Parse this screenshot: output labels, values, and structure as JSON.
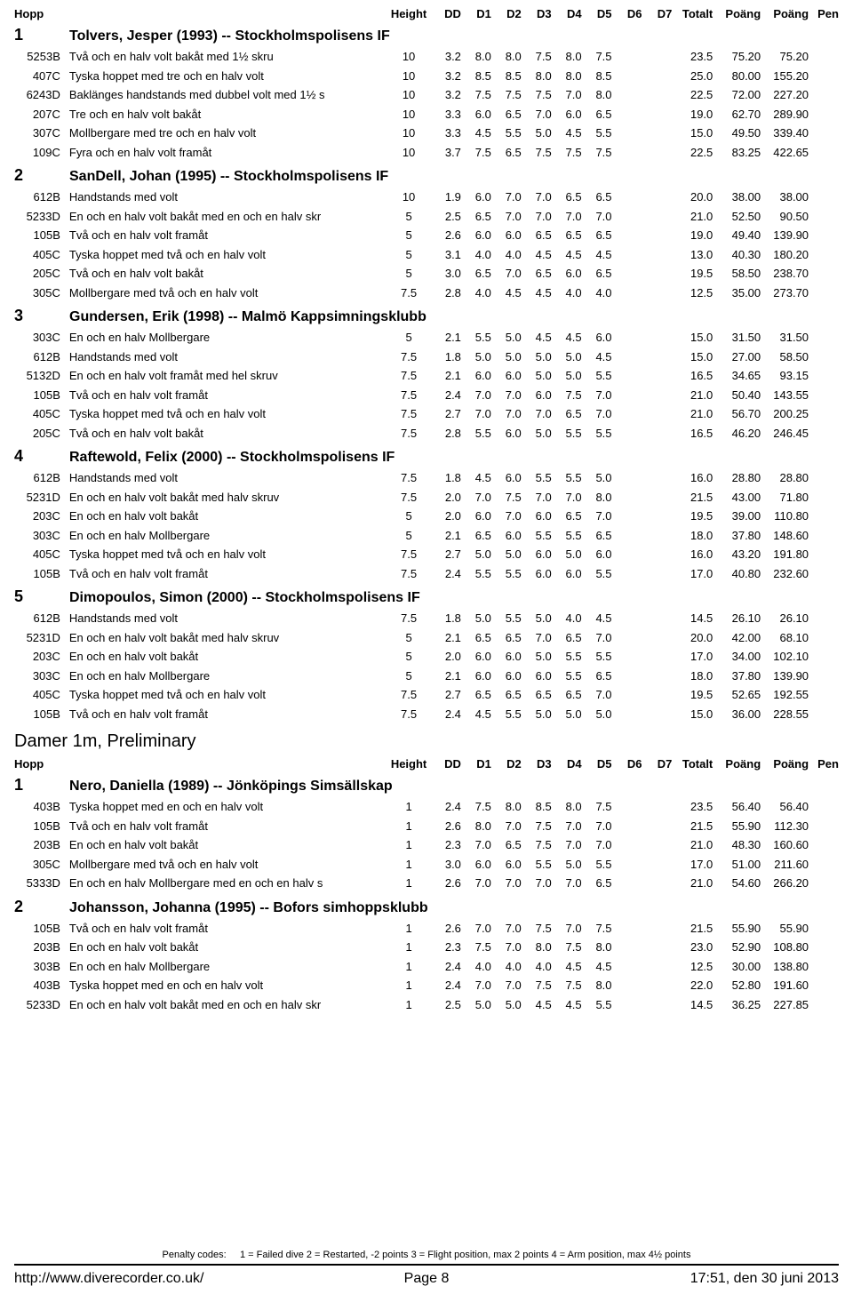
{
  "headers": {
    "hopp": "Hopp",
    "height": "Height",
    "dd": "DD",
    "d1": "D1",
    "d2": "D2",
    "d3": "D3",
    "d4": "D4",
    "d5": "D5",
    "d6": "D6",
    "d7": "D7",
    "totalt": "Totalt",
    "poang1": "Poäng",
    "poang2": "Poäng",
    "pen": "Pen"
  },
  "sections": [
    {
      "title": null,
      "divers": [
        {
          "num": "1",
          "name": "Tolvers, Jesper (1993) -- Stockholmspolisens IF",
          "dives": [
            {
              "code": "5253B",
              "desc": "Två och en halv volt bakåt med 1½ skru",
              "h": "10",
              "dd": "3.2",
              "d": [
                "8.0",
                "8.0",
                "7.5",
                "8.0",
                "7.5"
              ],
              "tot": "23.5",
              "p1": "75.20",
              "p2": "75.20"
            },
            {
              "code": "407C",
              "desc": "Tyska hoppet med tre och en halv volt",
              "h": "10",
              "dd": "3.2",
              "d": [
                "8.5",
                "8.5",
                "8.0",
                "8.0",
                "8.5"
              ],
              "tot": "25.0",
              "p1": "80.00",
              "p2": "155.20"
            },
            {
              "code": "6243D",
              "desc": "Baklänges handstands med dubbel volt med 1½ s",
              "h": "10",
              "dd": "3.2",
              "d": [
                "7.5",
                "7.5",
                "7.5",
                "7.0",
                "8.0"
              ],
              "tot": "22.5",
              "p1": "72.00",
              "p2": "227.20"
            },
            {
              "code": "207C",
              "desc": "Tre och en halv volt bakåt",
              "h": "10",
              "dd": "3.3",
              "d": [
                "6.0",
                "6.5",
                "7.0",
                "6.0",
                "6.5"
              ],
              "tot": "19.0",
              "p1": "62.70",
              "p2": "289.90"
            },
            {
              "code": "307C",
              "desc": "Mollbergare med tre och en halv volt",
              "h": "10",
              "dd": "3.3",
              "d": [
                "4.5",
                "5.5",
                "5.0",
                "4.5",
                "5.5"
              ],
              "tot": "15.0",
              "p1": "49.50",
              "p2": "339.40"
            },
            {
              "code": "109C",
              "desc": "Fyra och en halv volt framåt",
              "h": "10",
              "dd": "3.7",
              "d": [
                "7.5",
                "6.5",
                "7.5",
                "7.5",
                "7.5"
              ],
              "tot": "22.5",
              "p1": "83.25",
              "p2": "422.65"
            }
          ]
        },
        {
          "num": "2",
          "name": "SanDell, Johan (1995) -- Stockholmspolisens IF",
          "dives": [
            {
              "code": "612B",
              "desc": "Handstands med volt",
              "h": "10",
              "dd": "1.9",
              "d": [
                "6.0",
                "7.0",
                "7.0",
                "6.5",
                "6.5"
              ],
              "tot": "20.0",
              "p1": "38.00",
              "p2": "38.00"
            },
            {
              "code": "5233D",
              "desc": "En och en halv volt bakåt med en och en halv skr",
              "h": "5",
              "dd": "2.5",
              "d": [
                "6.5",
                "7.0",
                "7.0",
                "7.0",
                "7.0"
              ],
              "tot": "21.0",
              "p1": "52.50",
              "p2": "90.50"
            },
            {
              "code": "105B",
              "desc": "Två och en halv volt framåt",
              "h": "5",
              "dd": "2.6",
              "d": [
                "6.0",
                "6.0",
                "6.5",
                "6.5",
                "6.5"
              ],
              "tot": "19.0",
              "p1": "49.40",
              "p2": "139.90"
            },
            {
              "code": "405C",
              "desc": "Tyska hoppet med två och en halv volt",
              "h": "5",
              "dd": "3.1",
              "d": [
                "4.0",
                "4.0",
                "4.5",
                "4.5",
                "4.5"
              ],
              "tot": "13.0",
              "p1": "40.30",
              "p2": "180.20"
            },
            {
              "code": "205C",
              "desc": "Två och en halv volt bakåt",
              "h": "5",
              "dd": "3.0",
              "d": [
                "6.5",
                "7.0",
                "6.5",
                "6.0",
                "6.5"
              ],
              "tot": "19.5",
              "p1": "58.50",
              "p2": "238.70"
            },
            {
              "code": "305C",
              "desc": "Mollbergare med två och en halv volt",
              "h": "7.5",
              "dd": "2.8",
              "d": [
                "4.0",
                "4.5",
                "4.5",
                "4.0",
                "4.0"
              ],
              "tot": "12.5",
              "p1": "35.00",
              "p2": "273.70"
            }
          ]
        },
        {
          "num": "3",
          "name": "Gundersen, Erik (1998) -- Malmö Kappsimningsklubb",
          "dives": [
            {
              "code": "303C",
              "desc": "En och en halv Mollbergare",
              "h": "5",
              "dd": "2.1",
              "d": [
                "5.5",
                "5.0",
                "4.5",
                "4.5",
                "6.0"
              ],
              "tot": "15.0",
              "p1": "31.50",
              "p2": "31.50"
            },
            {
              "code": "612B",
              "desc": "Handstands med volt",
              "h": "7.5",
              "dd": "1.8",
              "d": [
                "5.0",
                "5.0",
                "5.0",
                "5.0",
                "4.5"
              ],
              "tot": "15.0",
              "p1": "27.00",
              "p2": "58.50"
            },
            {
              "code": "5132D",
              "desc": "En och en halv volt framåt med hel skruv",
              "h": "7.5",
              "dd": "2.1",
              "d": [
                "6.0",
                "6.0",
                "5.0",
                "5.0",
                "5.5"
              ],
              "tot": "16.5",
              "p1": "34.65",
              "p2": "93.15"
            },
            {
              "code": "105B",
              "desc": "Två och en halv volt framåt",
              "h": "7.5",
              "dd": "2.4",
              "d": [
                "7.0",
                "7.0",
                "6.0",
                "7.5",
                "7.0"
              ],
              "tot": "21.0",
              "p1": "50.40",
              "p2": "143.55"
            },
            {
              "code": "405C",
              "desc": "Tyska hoppet med två och en halv volt",
              "h": "7.5",
              "dd": "2.7",
              "d": [
                "7.0",
                "7.0",
                "7.0",
                "6.5",
                "7.0"
              ],
              "tot": "21.0",
              "p1": "56.70",
              "p2": "200.25"
            },
            {
              "code": "205C",
              "desc": "Två och en halv volt bakåt",
              "h": "7.5",
              "dd": "2.8",
              "d": [
                "5.5",
                "6.0",
                "5.0",
                "5.5",
                "5.5"
              ],
              "tot": "16.5",
              "p1": "46.20",
              "p2": "246.45"
            }
          ]
        },
        {
          "num": "4",
          "name": "Raftewold, Felix (2000) -- Stockholmspolisens IF",
          "dives": [
            {
              "code": "612B",
              "desc": "Handstands med volt",
              "h": "7.5",
              "dd": "1.8",
              "d": [
                "4.5",
                "6.0",
                "5.5",
                "5.5",
                "5.0"
              ],
              "tot": "16.0",
              "p1": "28.80",
              "p2": "28.80"
            },
            {
              "code": "5231D",
              "desc": "En och en halv volt bakåt med halv skruv",
              "h": "7.5",
              "dd": "2.0",
              "d": [
                "7.0",
                "7.5",
                "7.0",
                "7.0",
                "8.0"
              ],
              "tot": "21.5",
              "p1": "43.00",
              "p2": "71.80"
            },
            {
              "code": "203C",
              "desc": "En och en halv volt bakåt",
              "h": "5",
              "dd": "2.0",
              "d": [
                "6.0",
                "7.0",
                "6.0",
                "6.5",
                "7.0"
              ],
              "tot": "19.5",
              "p1": "39.00",
              "p2": "110.80"
            },
            {
              "code": "303C",
              "desc": "En och en halv Mollbergare",
              "h": "5",
              "dd": "2.1",
              "d": [
                "6.5",
                "6.0",
                "5.5",
                "5.5",
                "6.5"
              ],
              "tot": "18.0",
              "p1": "37.80",
              "p2": "148.60"
            },
            {
              "code": "405C",
              "desc": "Tyska hoppet med två och en halv volt",
              "h": "7.5",
              "dd": "2.7",
              "d": [
                "5.0",
                "5.0",
                "6.0",
                "5.0",
                "6.0"
              ],
              "tot": "16.0",
              "p1": "43.20",
              "p2": "191.80"
            },
            {
              "code": "105B",
              "desc": "Två och en halv volt framåt",
              "h": "7.5",
              "dd": "2.4",
              "d": [
                "5.5",
                "5.5",
                "6.0",
                "6.0",
                "5.5"
              ],
              "tot": "17.0",
              "p1": "40.80",
              "p2": "232.60"
            }
          ]
        },
        {
          "num": "5",
          "name": "Dimopoulos, Simon (2000) -- Stockholmspolisens IF",
          "dives": [
            {
              "code": "612B",
              "desc": "Handstands med volt",
              "h": "7.5",
              "dd": "1.8",
              "d": [
                "5.0",
                "5.5",
                "5.0",
                "4.0",
                "4.5"
              ],
              "tot": "14.5",
              "p1": "26.10",
              "p2": "26.10"
            },
            {
              "code": "5231D",
              "desc": "En och en halv volt bakåt med halv skruv",
              "h": "5",
              "dd": "2.1",
              "d": [
                "6.5",
                "6.5",
                "7.0",
                "6.5",
                "7.0"
              ],
              "tot": "20.0",
              "p1": "42.00",
              "p2": "68.10"
            },
            {
              "code": "203C",
              "desc": "En och en halv volt bakåt",
              "h": "5",
              "dd": "2.0",
              "d": [
                "6.0",
                "6.0",
                "5.0",
                "5.5",
                "5.5"
              ],
              "tot": "17.0",
              "p1": "34.00",
              "p2": "102.10"
            },
            {
              "code": "303C",
              "desc": "En och en halv Mollbergare",
              "h": "5",
              "dd": "2.1",
              "d": [
                "6.0",
                "6.0",
                "6.0",
                "5.5",
                "6.5"
              ],
              "tot": "18.0",
              "p1": "37.80",
              "p2": "139.90"
            },
            {
              "code": "405C",
              "desc": "Tyska hoppet med två och en halv volt",
              "h": "7.5",
              "dd": "2.7",
              "d": [
                "6.5",
                "6.5",
                "6.5",
                "6.5",
                "7.0"
              ],
              "tot": "19.5",
              "p1": "52.65",
              "p2": "192.55"
            },
            {
              "code": "105B",
              "desc": "Två och en halv volt framåt",
              "h": "7.5",
              "dd": "2.4",
              "d": [
                "4.5",
                "5.5",
                "5.0",
                "5.0",
                "5.0"
              ],
              "tot": "15.0",
              "p1": "36.00",
              "p2": "228.55"
            }
          ]
        }
      ]
    },
    {
      "title": "Damer 1m, Preliminary",
      "divers": [
        {
          "num": "1",
          "name": "Nero, Daniella (1989) -- Jönköpings Simsällskap",
          "dives": [
            {
              "code": "403B",
              "desc": "Tyska hoppet med en och en halv volt",
              "h": "1",
              "dd": "2.4",
              "d": [
                "7.5",
                "8.0",
                "8.5",
                "8.0",
                "7.5"
              ],
              "tot": "23.5",
              "p1": "56.40",
              "p2": "56.40"
            },
            {
              "code": "105B",
              "desc": "Två och en halv volt framåt",
              "h": "1",
              "dd": "2.6",
              "d": [
                "8.0",
                "7.0",
                "7.5",
                "7.0",
                "7.0"
              ],
              "tot": "21.5",
              "p1": "55.90",
              "p2": "112.30"
            },
            {
              "code": "203B",
              "desc": "En och en halv volt bakåt",
              "h": "1",
              "dd": "2.3",
              "d": [
                "7.0",
                "6.5",
                "7.5",
                "7.0",
                "7.0"
              ],
              "tot": "21.0",
              "p1": "48.30",
              "p2": "160.60"
            },
            {
              "code": "305C",
              "desc": "Mollbergare med två och en halv volt",
              "h": "1",
              "dd": "3.0",
              "d": [
                "6.0",
                "6.0",
                "5.5",
                "5.0",
                "5.5"
              ],
              "tot": "17.0",
              "p1": "51.00",
              "p2": "211.60"
            },
            {
              "code": "5333D",
              "desc": "En och en halv Mollbergare med en och en halv s",
              "h": "1",
              "dd": "2.6",
              "d": [
                "7.0",
                "7.0",
                "7.0",
                "7.0",
                "6.5"
              ],
              "tot": "21.0",
              "p1": "54.60",
              "p2": "266.20"
            }
          ]
        },
        {
          "num": "2",
          "name": "Johansson, Johanna (1995) -- Bofors simhoppsklubb",
          "dives": [
            {
              "code": "105B",
              "desc": "Två och en halv volt framåt",
              "h": "1",
              "dd": "2.6",
              "d": [
                "7.0",
                "7.0",
                "7.5",
                "7.0",
                "7.5"
              ],
              "tot": "21.5",
              "p1": "55.90",
              "p2": "55.90"
            },
            {
              "code": "203B",
              "desc": "En och en halv volt bakåt",
              "h": "1",
              "dd": "2.3",
              "d": [
                "7.5",
                "7.0",
                "8.0",
                "7.5",
                "8.0"
              ],
              "tot": "23.0",
              "p1": "52.90",
              "p2": "108.80"
            },
            {
              "code": "303B",
              "desc": "En och en halv Mollbergare",
              "h": "1",
              "dd": "2.4",
              "d": [
                "4.0",
                "4.0",
                "4.0",
                "4.5",
                "4.5"
              ],
              "tot": "12.5",
              "p1": "30.00",
              "p2": "138.80"
            },
            {
              "code": "403B",
              "desc": "Tyska hoppet med en och en halv volt",
              "h": "1",
              "dd": "2.4",
              "d": [
                "7.0",
                "7.0",
                "7.5",
                "7.5",
                "8.0"
              ],
              "tot": "22.0",
              "p1": "52.80",
              "p2": "191.60"
            },
            {
              "code": "5233D",
              "desc": "En och en halv volt bakåt med en och en halv skr",
              "h": "1",
              "dd": "2.5",
              "d": [
                "5.0",
                "5.0",
                "4.5",
                "4.5",
                "5.5"
              ],
              "tot": "14.5",
              "p1": "36.25",
              "p2": "227.85"
            }
          ]
        }
      ]
    }
  ],
  "footer": {
    "penalty_label": "Penalty codes:",
    "penalty_text": "1 = Failed dive     2 = Restarted, -2 points     3 = Flight position, max 2 points     4 = Arm position, max 4½ points",
    "url": "http://www.diverecorder.co.uk/",
    "page": "Page 8",
    "datetime": "17:51,  den 30 juni 2013"
  }
}
